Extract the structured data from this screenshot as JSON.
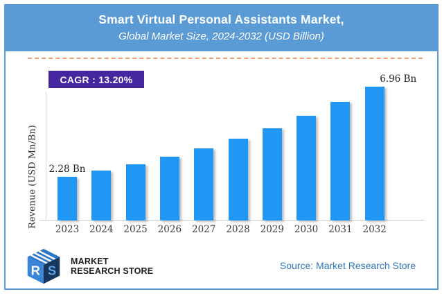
{
  "header": {
    "title": "Smart Virtual Personal Assistants Market,",
    "subtitle": "Global Market Size, 2024-2032 (USD Billion)"
  },
  "cagr": {
    "text": "CAGR :  13.20%"
  },
  "chart_data": {
    "type": "bar",
    "title": "Smart Virtual Personal Assistants Market, Global Market Size, 2024-2032 (USD Billion)",
    "categories": [
      "2023",
      "2024",
      "2025",
      "2026",
      "2027",
      "2028",
      "2029",
      "2030",
      "2031",
      "2032"
    ],
    "values": [
      2.28,
      2.58,
      2.92,
      3.31,
      3.74,
      4.24,
      4.8,
      5.43,
      6.15,
      6.96
    ],
    "point_labels": [
      "2.28 Bn",
      null,
      null,
      null,
      null,
      null,
      null,
      null,
      null,
      "6.96 Bn"
    ],
    "unit": "USD Bn",
    "xlabel": "",
    "ylabel": "Revenue (USD Mn/Bn)",
    "ylim": [
      0,
      7.3
    ],
    "grid": false,
    "legend": false,
    "cagr_percent": "13.20%",
    "bar_color": "#2097F4"
  },
  "footer": {
    "source": "Source: Market Research Store",
    "logo_line1": "MARKET",
    "logo_line2": "RESEARCH STORE",
    "logo_monogram": "MRS"
  },
  "colors": {
    "header_bg": "#5B9BD5",
    "frame_border": "#5B9BD5",
    "bar": "#2097F4",
    "cagr_bg": "#46269E",
    "dashed_divider": "#F0A273",
    "source_text": "#2E75B6",
    "axis_text": "#3c3c3c",
    "logo_blue": "#2E77C8",
    "logo_dark": "#16365C"
  }
}
